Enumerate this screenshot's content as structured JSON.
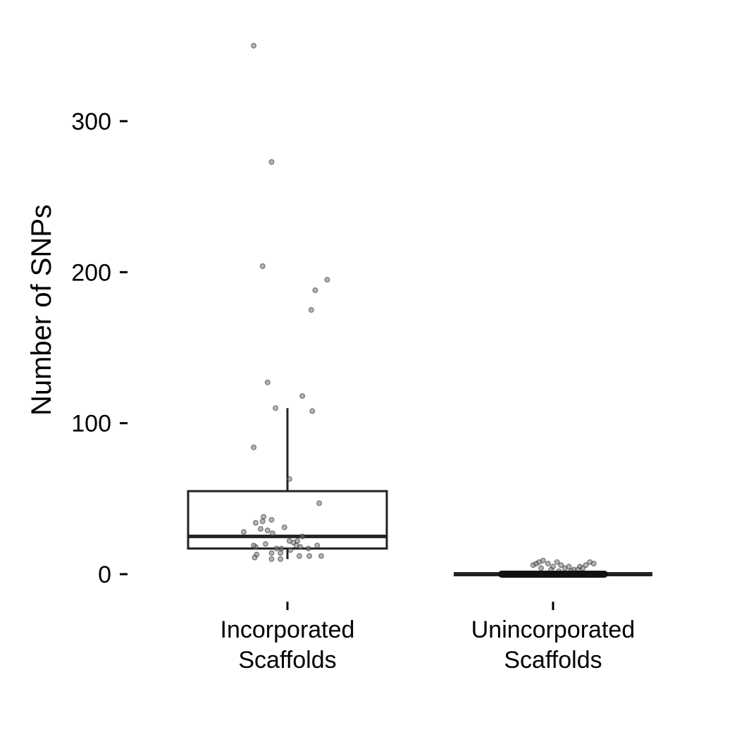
{
  "chart_data": {
    "type": "boxplot",
    "ylabel": "Number of SNPs",
    "xlabel": "",
    "title": "",
    "ylim": [
      -18,
      352
    ],
    "yticks": [
      0,
      100,
      200,
      300
    ],
    "categories": [
      {
        "label_line1": "Incorporated",
        "label_line2": "Scaffolds"
      },
      {
        "label_line1": "Unincorporated",
        "label_line2": "Scaffolds"
      }
    ],
    "boxes": [
      {
        "q1": 17,
        "median": 25,
        "q3": 55,
        "whisker_low": 10,
        "whisker_high": 110
      },
      {
        "q1": 0,
        "median": 0,
        "q3": 0,
        "whisker_low": 0,
        "whisker_high": 0
      }
    ],
    "points": [
      [
        {
          "x": -0.34,
          "y": 350
        },
        {
          "x": -0.16,
          "y": 273
        },
        {
          "x": -0.25,
          "y": 204
        },
        {
          "x": 0.4,
          "y": 195
        },
        {
          "x": 0.28,
          "y": 188
        },
        {
          "x": 0.24,
          "y": 175
        },
        {
          "x": -0.2,
          "y": 127
        },
        {
          "x": 0.15,
          "y": 118
        },
        {
          "x": -0.12,
          "y": 110
        },
        {
          "x": 0.25,
          "y": 108
        },
        {
          "x": -0.34,
          "y": 84
        },
        {
          "x": 0.02,
          "y": 63
        },
        {
          "x": 0.32,
          "y": 47
        },
        {
          "x": -0.24,
          "y": 38
        },
        {
          "x": -0.32,
          "y": 34
        },
        {
          "x": -0.25,
          "y": 35
        },
        {
          "x": -0.16,
          "y": 36
        },
        {
          "x": -0.44,
          "y": 28
        },
        {
          "x": -0.27,
          "y": 30
        },
        {
          "x": -0.2,
          "y": 29
        },
        {
          "x": -0.15,
          "y": 27
        },
        {
          "x": -0.03,
          "y": 31
        },
        {
          "x": 0.15,
          "y": 25
        },
        {
          "x": 0.1,
          "y": 22
        },
        {
          "x": 0.06,
          "y": 21
        },
        {
          "x": 0.02,
          "y": 22
        },
        {
          "x": 0.09,
          "y": 19
        },
        {
          "x": 0.13,
          "y": 18
        },
        {
          "x": -0.32,
          "y": 18
        },
        {
          "x": -0.34,
          "y": 19
        },
        {
          "x": -0.22,
          "y": 20
        },
        {
          "x": -0.11,
          "y": 17
        },
        {
          "x": -0.06,
          "y": 17
        },
        {
          "x": 0.03,
          "y": 16
        },
        {
          "x": 0.21,
          "y": 17
        },
        {
          "x": 0.3,
          "y": 19
        },
        {
          "x": -0.31,
          "y": 13
        },
        {
          "x": -0.16,
          "y": 14
        },
        {
          "x": -0.07,
          "y": 14
        },
        {
          "x": 0.12,
          "y": 12
        },
        {
          "x": 0.22,
          "y": 12
        },
        {
          "x": 0.34,
          "y": 12
        },
        {
          "x": -0.33,
          "y": 11
        },
        {
          "x": -0.16,
          "y": 10
        },
        {
          "x": -0.07,
          "y": 10
        }
      ],
      [
        {
          "x": -0.2,
          "y": 6
        },
        {
          "x": -0.17,
          "y": 7
        },
        {
          "x": -0.14,
          "y": 8
        },
        {
          "x": -0.1,
          "y": 9
        },
        {
          "x": -0.05,
          "y": 7
        },
        {
          "x": 0.0,
          "y": 5
        },
        {
          "x": 0.04,
          "y": 8
        },
        {
          "x": 0.08,
          "y": 6
        },
        {
          "x": 0.12,
          "y": 4
        },
        {
          "x": 0.16,
          "y": 5
        },
        {
          "x": 0.21,
          "y": 3
        },
        {
          "x": 0.27,
          "y": 5
        },
        {
          "x": 0.3,
          "y": 4
        },
        {
          "x": 0.33,
          "y": 6
        },
        {
          "x": 0.37,
          "y": 8
        },
        {
          "x": 0.41,
          "y": 7
        },
        {
          "x": -0.12,
          "y": 4
        },
        {
          "x": -0.02,
          "y": 3
        },
        {
          "x": 0.06,
          "y": 2
        },
        {
          "x": 0.18,
          "y": 2
        },
        {
          "x": 0.25,
          "y": 3
        }
      ]
    ],
    "point_color": "#777777",
    "box_color": "#222222",
    "axis_color": "#000000"
  }
}
